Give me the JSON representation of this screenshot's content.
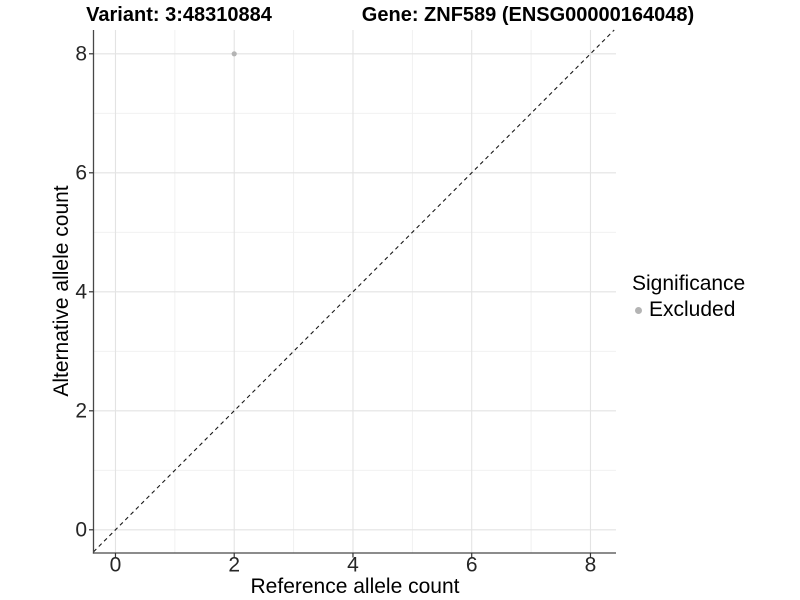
{
  "titles": {
    "variant": "Variant: 3:48310884",
    "gene": "Gene: ZNF589 (ENSG00000164048)"
  },
  "chart_data": {
    "type": "scatter",
    "title_left": "Variant: 3:48310884",
    "title_right": "Gene: ZNF589 (ENSG00000164048)",
    "xlabel": "Reference allele count",
    "ylabel": "Alternative allele count",
    "xlim": [
      -0.37,
      8.43
    ],
    "ylim": [
      -0.39,
      8.4
    ],
    "x_ticks": [
      0,
      2,
      4,
      6,
      8
    ],
    "y_ticks": [
      0,
      2,
      4,
      6,
      8
    ],
    "x_minor_ticks": [
      1,
      3,
      5,
      7
    ],
    "y_minor_ticks": [
      1,
      3,
      5,
      7
    ],
    "grid": true,
    "points": [
      {
        "x": 2,
        "y": 8,
        "series": "Excluded"
      }
    ],
    "identity_line": {
      "slope": 1,
      "intercept": 0,
      "style": "dashed"
    },
    "legend": {
      "title": "Significance",
      "position": "right",
      "entries": [
        {
          "label": "Excluded",
          "color": "#b4b4b4"
        }
      ]
    },
    "colors": {
      "background": "#ffffff",
      "grid_major": "#e3e3e3",
      "grid_minor": "#efefef",
      "axis_line": "#474747",
      "tick_mark": "#333333",
      "dashed_line": "#1a1a1a",
      "point": "#b4b4b4"
    }
  }
}
